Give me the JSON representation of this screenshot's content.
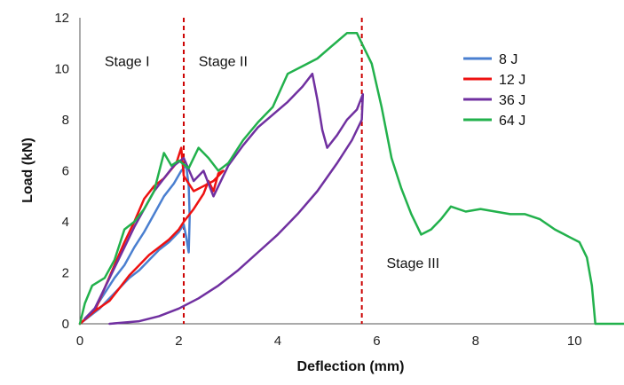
{
  "chart_data": {
    "type": "line",
    "xlabel": "Deflection (mm)",
    "ylabel": "Load (kN)",
    "xlim": [
      0,
      11
    ],
    "ylim": [
      0,
      12
    ],
    "xticks": [
      "0",
      "2",
      "4",
      "6",
      "8",
      "10"
    ],
    "yticks": [
      "0",
      "2",
      "4",
      "6",
      "8",
      "10",
      "12"
    ],
    "grid": false,
    "legend_position": "top-right",
    "stage_lines": [
      2.1,
      5.7
    ],
    "stage_line_color": "#cc0000",
    "stage_labels": [
      {
        "text": "Stage I",
        "x": 0.5,
        "y": 10.1
      },
      {
        "text": "Stage II",
        "x": 2.4,
        "y": 10.1
      },
      {
        "text": "Stage III",
        "x": 6.2,
        "y": 2.2
      }
    ],
    "series": [
      {
        "name": "8 J",
        "color": "#4a7fd0",
        "points": [
          [
            0,
            0
          ],
          [
            0.2,
            0.3
          ],
          [
            0.4,
            0.6
          ],
          [
            0.6,
            1.0
          ],
          [
            0.8,
            1.4
          ],
          [
            1.0,
            1.8
          ],
          [
            1.2,
            2.1
          ],
          [
            1.4,
            2.5
          ],
          [
            1.6,
            2.9
          ],
          [
            1.8,
            3.2
          ],
          [
            2.0,
            3.6
          ],
          [
            2.1,
            3.9
          ],
          [
            2.15,
            3.4
          ],
          [
            2.2,
            2.8
          ],
          [
            2.22,
            4.2
          ],
          [
            2.2,
            5.4
          ],
          [
            2.15,
            6.2
          ],
          [
            2.05,
            6.0
          ],
          [
            1.9,
            5.5
          ],
          [
            1.7,
            5.0
          ],
          [
            1.5,
            4.3
          ],
          [
            1.3,
            3.6
          ],
          [
            1.1,
            3.0
          ],
          [
            0.9,
            2.3
          ],
          [
            0.7,
            1.8
          ],
          [
            0.5,
            1.2
          ],
          [
            0.3,
            0.6
          ],
          [
            0.1,
            0.2
          ]
        ]
      },
      {
        "name": "12 J",
        "color": "#ee1111",
        "points": [
          [
            0,
            0
          ],
          [
            0.3,
            0.5
          ],
          [
            0.6,
            0.9
          ],
          [
            0.8,
            1.4
          ],
          [
            1.0,
            1.9
          ],
          [
            1.2,
            2.3
          ],
          [
            1.4,
            2.7
          ],
          [
            1.6,
            3.0
          ],
          [
            1.8,
            3.3
          ],
          [
            2.0,
            3.7
          ],
          [
            2.1,
            4.0
          ],
          [
            2.3,
            4.5
          ],
          [
            2.5,
            5.1
          ],
          [
            2.6,
            5.6
          ],
          [
            2.7,
            5.2
          ],
          [
            2.8,
            5.9
          ],
          [
            2.9,
            6.0
          ],
          [
            2.7,
            5.6
          ],
          [
            2.5,
            5.4
          ],
          [
            2.3,
            5.2
          ],
          [
            2.1,
            5.8
          ],
          [
            2.05,
            6.9
          ],
          [
            1.95,
            6.3
          ],
          [
            1.7,
            5.7
          ],
          [
            1.5,
            5.4
          ],
          [
            1.3,
            4.9
          ],
          [
            1.1,
            4.0
          ],
          [
            0.9,
            3.2
          ],
          [
            0.7,
            2.3
          ],
          [
            0.5,
            1.4
          ],
          [
            0.3,
            0.5
          ],
          [
            0.1,
            0.2
          ]
        ]
      },
      {
        "name": "36 J",
        "color": "#7030a0",
        "points": [
          [
            0.6,
            0
          ],
          [
            1.2,
            0.1
          ],
          [
            1.6,
            0.3
          ],
          [
            2.0,
            0.6
          ],
          [
            2.4,
            1.0
          ],
          [
            2.8,
            1.5
          ],
          [
            3.2,
            2.1
          ],
          [
            3.6,
            2.8
          ],
          [
            4.0,
            3.5
          ],
          [
            4.4,
            4.3
          ],
          [
            4.8,
            5.2
          ],
          [
            5.2,
            6.3
          ],
          [
            5.5,
            7.2
          ],
          [
            5.7,
            8.0
          ],
          [
            5.72,
            9.0
          ],
          [
            5.6,
            8.4
          ],
          [
            5.4,
            8.0
          ],
          [
            5.2,
            7.4
          ],
          [
            5.0,
            6.9
          ],
          [
            4.9,
            7.6
          ],
          [
            4.8,
            8.8
          ],
          [
            4.7,
            9.8
          ],
          [
            4.5,
            9.3
          ],
          [
            4.2,
            8.7
          ],
          [
            3.9,
            8.2
          ],
          [
            3.6,
            7.7
          ],
          [
            3.3,
            7.0
          ],
          [
            3.0,
            6.2
          ],
          [
            2.7,
            5.0
          ],
          [
            2.5,
            6.0
          ],
          [
            2.3,
            5.6
          ],
          [
            2.1,
            6.5
          ],
          [
            1.9,
            6.2
          ],
          [
            1.7,
            5.7
          ],
          [
            1.5,
            5.2
          ],
          [
            1.3,
            4.5
          ],
          [
            1.1,
            3.8
          ],
          [
            0.9,
            3.0
          ],
          [
            0.7,
            2.2
          ],
          [
            0.5,
            1.4
          ],
          [
            0.3,
            0.6
          ],
          [
            0.1,
            0.2
          ]
        ]
      },
      {
        "name": "64 J",
        "color": "#22b14c",
        "points": [
          [
            0,
            0
          ],
          [
            0.1,
            0.8
          ],
          [
            0.25,
            1.5
          ],
          [
            0.5,
            1.8
          ],
          [
            0.7,
            2.5
          ],
          [
            0.9,
            3.7
          ],
          [
            1.1,
            4.0
          ],
          [
            1.3,
            4.5
          ],
          [
            1.5,
            5.2
          ],
          [
            1.7,
            6.7
          ],
          [
            1.85,
            6.2
          ],
          [
            2.0,
            6.4
          ],
          [
            2.2,
            6.1
          ],
          [
            2.4,
            6.9
          ],
          [
            2.6,
            6.5
          ],
          [
            2.8,
            6.0
          ],
          [
            3.0,
            6.3
          ],
          [
            3.3,
            7.2
          ],
          [
            3.6,
            7.9
          ],
          [
            3.9,
            8.5
          ],
          [
            4.2,
            9.8
          ],
          [
            4.5,
            10.1
          ],
          [
            4.8,
            10.4
          ],
          [
            5.1,
            10.9
          ],
          [
            5.4,
            11.4
          ],
          [
            5.6,
            11.4
          ],
          [
            5.7,
            11.0
          ],
          [
            5.9,
            10.2
          ],
          [
            6.1,
            8.5
          ],
          [
            6.3,
            6.5
          ],
          [
            6.5,
            5.3
          ],
          [
            6.7,
            4.3
          ],
          [
            6.9,
            3.5
          ],
          [
            7.1,
            3.7
          ],
          [
            7.3,
            4.1
          ],
          [
            7.5,
            4.6
          ],
          [
            7.8,
            4.4
          ],
          [
            8.1,
            4.5
          ],
          [
            8.4,
            4.4
          ],
          [
            8.7,
            4.3
          ],
          [
            9.0,
            4.3
          ],
          [
            9.3,
            4.1
          ],
          [
            9.6,
            3.7
          ],
          [
            9.9,
            3.4
          ],
          [
            10.1,
            3.2
          ],
          [
            10.25,
            2.6
          ],
          [
            10.35,
            1.5
          ],
          [
            10.42,
            0
          ],
          [
            11,
            0
          ]
        ]
      }
    ]
  }
}
